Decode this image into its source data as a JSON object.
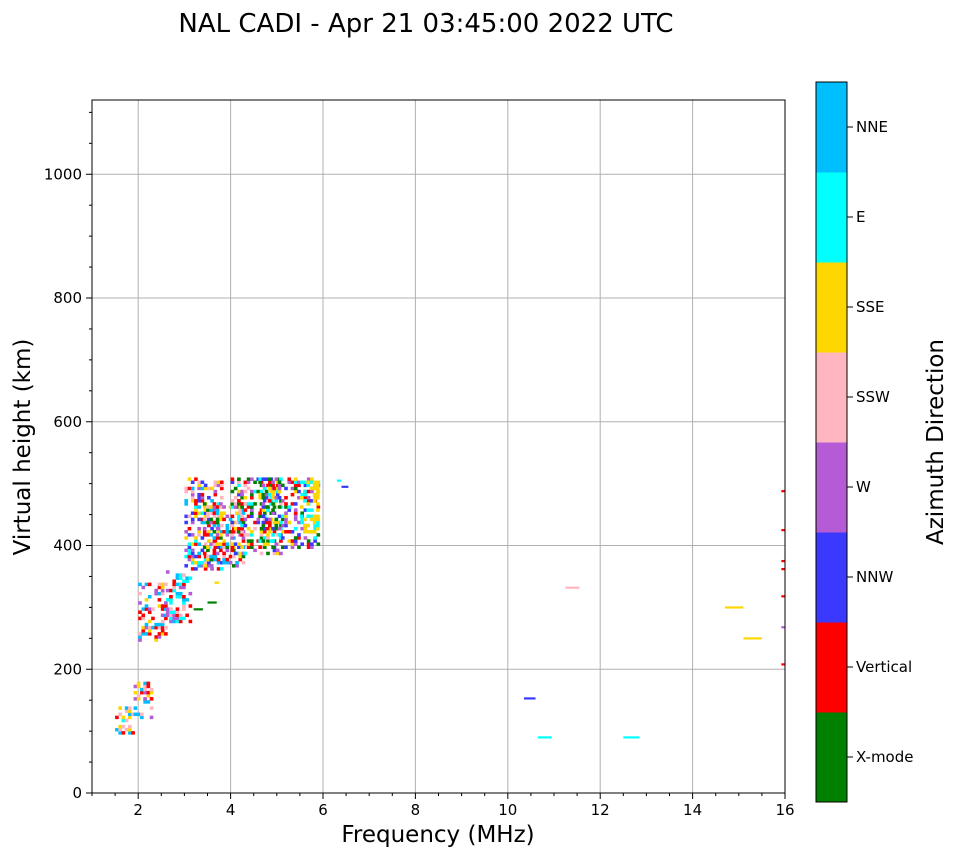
{
  "chart_data": {
    "type": "scatter",
    "title": "NAL CADI - Apr 21 03:45:00 2022 UTC",
    "xlabel": "Frequency (MHz)",
    "ylabel": "Virtual height (km)",
    "xlim": [
      1,
      16
    ],
    "ylim": [
      0,
      1120
    ],
    "xticks": [
      2,
      4,
      6,
      8,
      10,
      12,
      14,
      16
    ],
    "yticks": [
      0,
      200,
      400,
      600,
      800,
      1000
    ],
    "grid": true,
    "colorbar": {
      "label": "Azimuth Direction",
      "categories": [
        {
          "name": "X-mode",
          "color": "#008000"
        },
        {
          "name": "Vertical",
          "color": "#ff0000"
        },
        {
          "name": "NNW",
          "color": "#3a3aff"
        },
        {
          "name": "W",
          "color": "#b55bd6"
        },
        {
          "name": "SSW",
          "color": "#ffb6c1"
        },
        {
          "name": "SSE",
          "color": "#ffd700"
        },
        {
          "name": "E",
          "color": "#00ffff"
        },
        {
          "name": "NNE",
          "color": "#00bfff"
        }
      ]
    },
    "regions": [
      {
        "f": [
          1.5,
          1.9
        ],
        "h": [
          95,
          140
        ],
        "dirs": [
          "E",
          "SSE",
          "SSW",
          "NNE",
          "Vertical"
        ]
      },
      {
        "f": [
          1.9,
          2.3
        ],
        "h": [
          120,
          180
        ],
        "dirs": [
          "Vertical",
          "SSW",
          "NNE",
          "W",
          "SSE"
        ]
      },
      {
        "f": [
          2.0,
          2.6
        ],
        "h": [
          245,
          340
        ],
        "dirs": [
          "Vertical",
          "SSE",
          "SSW",
          "W",
          "NNE"
        ]
      },
      {
        "f": [
          2.6,
          3.1
        ],
        "h": [
          270,
          360
        ],
        "dirs": [
          "SSW",
          "Vertical",
          "W",
          "NNE",
          "E"
        ]
      },
      {
        "f": [
          3.0,
          3.8
        ],
        "h": [
          360,
          510
        ],
        "dirs": [
          "Vertical",
          "W",
          "NNE",
          "SSE",
          "NNW",
          "E",
          "SSW"
        ]
      },
      {
        "f": [
          3.4,
          4.3
        ],
        "h": [
          365,
          470
        ],
        "dirs": [
          "Vertical",
          "SSE",
          "W",
          "SSW",
          "NNE",
          "X-mode"
        ]
      },
      {
        "f": [
          4.0,
          5.1
        ],
        "h": [
          385,
          510
        ],
        "dirs": [
          "Vertical",
          "NNW",
          "W",
          "X-mode",
          "E",
          "SSE",
          "SSW"
        ]
      },
      {
        "f": [
          4.6,
          5.9
        ],
        "h": [
          395,
          510
        ],
        "dirs": [
          "X-mode",
          "SSE",
          "E",
          "Vertical",
          "NNW",
          "W"
        ]
      },
      {
        "f": [
          5.5,
          5.9
        ],
        "h": [
          420,
          505
        ],
        "dirs": [
          "SSE",
          "SSE",
          "SSE",
          "E"
        ]
      }
    ],
    "traces": [
      {
        "f1": 3.2,
        "f2": 3.4,
        "h": 297,
        "dir": "X-mode"
      },
      {
        "f1": 3.5,
        "f2": 3.7,
        "h": 308,
        "dir": "X-mode"
      },
      {
        "f1": 3.65,
        "f2": 3.75,
        "h": 340,
        "dir": "SSE"
      },
      {
        "f1": 6.3,
        "f2": 6.4,
        "h": 505,
        "dir": "E"
      },
      {
        "f1": 6.4,
        "f2": 6.55,
        "h": 495,
        "dir": "NNW"
      },
      {
        "f1": 10.35,
        "f2": 10.6,
        "h": 153,
        "dir": "NNW"
      },
      {
        "f1": 10.65,
        "f2": 10.95,
        "h": 90,
        "dir": "E"
      },
      {
        "f1": 11.25,
        "f2": 11.55,
        "h": 332,
        "dir": "SSW"
      },
      {
        "f1": 12.5,
        "f2": 12.85,
        "h": 90,
        "dir": "E"
      },
      {
        "f1": 14.7,
        "f2": 15.1,
        "h": 300,
        "dir": "SSE"
      },
      {
        "f1": 15.1,
        "f2": 15.5,
        "h": 250,
        "dir": "SSE"
      },
      {
        "f1": 15.92,
        "f2": 16.0,
        "h": 488,
        "dir": "Vertical"
      },
      {
        "f1": 15.92,
        "f2": 16.0,
        "h": 425,
        "dir": "Vertical"
      },
      {
        "f1": 15.92,
        "f2": 16.0,
        "h": 375,
        "dir": "Vertical"
      },
      {
        "f1": 15.92,
        "f2": 16.0,
        "h": 362,
        "dir": "Vertical"
      },
      {
        "f1": 15.92,
        "f2": 16.0,
        "h": 318,
        "dir": "Vertical"
      },
      {
        "f1": 15.92,
        "f2": 16.0,
        "h": 268,
        "dir": "W"
      },
      {
        "f1": 15.92,
        "f2": 16.0,
        "h": 208,
        "dir": "Vertical"
      }
    ]
  }
}
